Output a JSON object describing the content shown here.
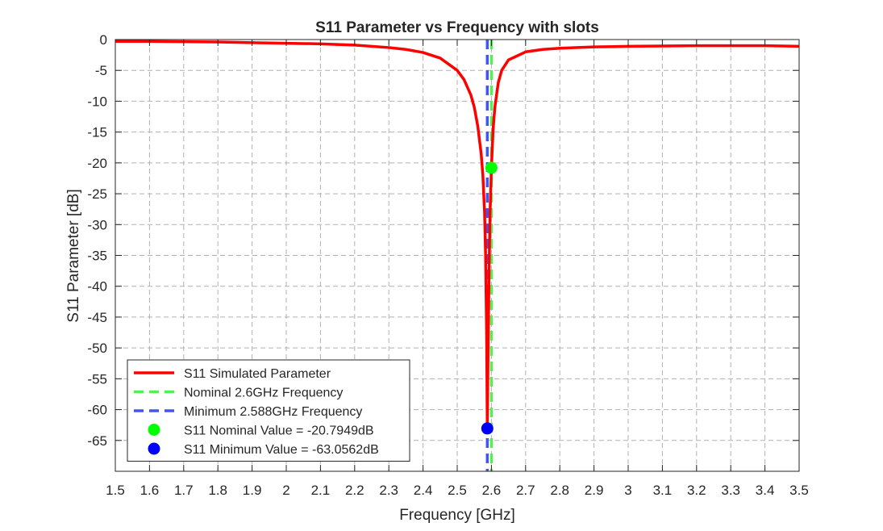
{
  "chart_data": {
    "type": "line",
    "title": "S11 Parameter vs Frequency with slots",
    "xlabel": "Frequency [GHz]",
    "ylabel": "S11 Parameter [dB]",
    "xlim": [
      1.5,
      3.5
    ],
    "ylim": [
      -70,
      0
    ],
    "xticks": [
      "1.5",
      "1.6",
      "1.7",
      "1.8",
      "1.9",
      "2",
      "2.1",
      "2.2",
      "2.3",
      "2.4",
      "2.5",
      "2.6",
      "2.7",
      "2.8",
      "2.9",
      "3",
      "3.1",
      "3.2",
      "3.3",
      "3.4",
      "3.5"
    ],
    "yticks": [
      "0",
      "-5",
      "-10",
      "-15",
      "-20",
      "-25",
      "-30",
      "-35",
      "-40",
      "-45",
      "-50",
      "-55",
      "-60",
      "-65"
    ],
    "grid": true,
    "legend_position": "bottom-left",
    "series": [
      {
        "name": "S11 Simulated Parameter",
        "style": "solid",
        "color": "#ff0000",
        "x": [
          1.5,
          1.6,
          1.7,
          1.8,
          1.9,
          2.0,
          2.1,
          2.2,
          2.3,
          2.35,
          2.4,
          2.45,
          2.5,
          2.52,
          2.54,
          2.55,
          2.56,
          2.57,
          2.575,
          2.58,
          2.583,
          2.586,
          2.588,
          2.59,
          2.593,
          2.596,
          2.6,
          2.605,
          2.61,
          2.62,
          2.63,
          2.65,
          2.7,
          2.75,
          2.8,
          2.9,
          3.0,
          3.1,
          3.2,
          3.3,
          3.4,
          3.5
        ],
        "y": [
          -0.3,
          -0.3,
          -0.35,
          -0.4,
          -0.5,
          -0.6,
          -0.7,
          -0.9,
          -1.3,
          -1.6,
          -2.1,
          -3.0,
          -5.0,
          -6.5,
          -9.0,
          -11.0,
          -14.0,
          -18.5,
          -22.0,
          -28.0,
          -35.0,
          -48.0,
          -63.0562,
          -52.0,
          -38.0,
          -28.0,
          -20.7949,
          -14.5,
          -11.0,
          -7.0,
          -5.0,
          -3.3,
          -2.0,
          -1.6,
          -1.4,
          -1.2,
          -1.1,
          -1.05,
          -1.0,
          -1.0,
          -1.0,
          -1.1
        ]
      },
      {
        "name": "Nominal 2.6GHz Frequency",
        "style": "dashed",
        "color": "#55ee55",
        "x": [
          2.6,
          2.6
        ],
        "y": [
          0,
          -70
        ]
      },
      {
        "name": "Minimum 2.588GHz Frequency",
        "style": "dashed",
        "color": "#4455ee",
        "x": [
          2.588,
          2.588
        ],
        "y": [
          0,
          -70
        ]
      }
    ],
    "points": [
      {
        "name": "S11 Nominal Value = -20.7949dB",
        "x": 2.6,
        "y": -20.7949,
        "color": "#00ff00"
      },
      {
        "name": "S11 Minimum Value = -63.0562dB",
        "x": 2.588,
        "y": -63.0562,
        "color": "#0000ff"
      }
    ]
  }
}
